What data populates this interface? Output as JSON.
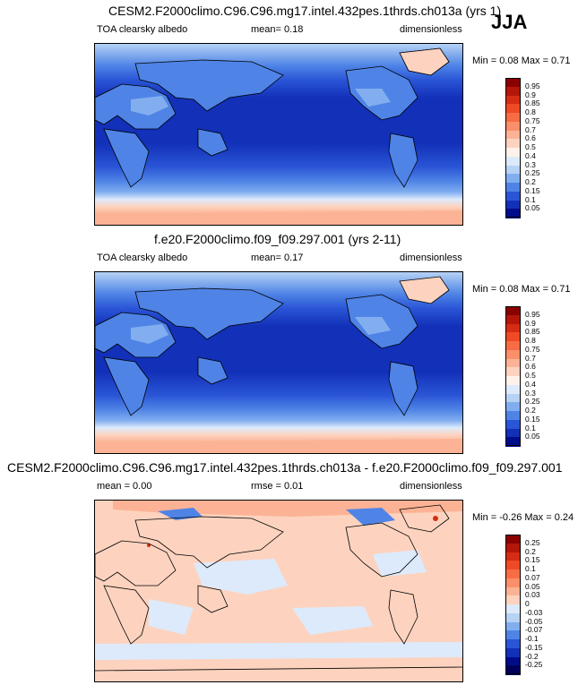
{
  "season": "JJA",
  "panels": [
    {
      "id": "top",
      "title": "CESM2.F2000climo.C96.C96.mg17.intel.432pes.1thrds.ch013a (yrs 1)",
      "left_label": "TOA clearsky albedo",
      "center_label": "mean=  0.18",
      "right_label": "dimensionless",
      "minmax": "Min =  0.08 Max =  0.71"
    },
    {
      "id": "middle",
      "title": "f.e20.F2000climo.f09_f09.297.001 (yrs 2-11)",
      "left_label": "TOA clearsky albedo",
      "center_label": "mean=  0.17",
      "right_label": "dimensionless",
      "minmax": "Min =  0.08 Max =  0.71"
    },
    {
      "id": "bottom",
      "title": "CESM2.F2000climo.C96.C96.mg17.intel.432pes.1thrds.ch013a - f.e20.F2000climo.f09_f09.297.001",
      "left_label": "mean =  0.00",
      "center_label": "rmse =  0.01",
      "right_label": "dimensionless",
      "minmax": "Min =  -0.26 Max =  0.24"
    }
  ],
  "colorbars": {
    "albedo": {
      "labels": [
        "0.95",
        "0.9",
        "0.85",
        "0.8",
        "0.75",
        "0.7",
        "0.6",
        "0.5",
        "0.4",
        "0.3",
        "0.25",
        "0.2",
        "0.15",
        "0.1",
        "0.05"
      ],
      "colors": [
        "#8b0000",
        "#b4160a",
        "#d42d14",
        "#ee4a26",
        "#f76c45",
        "#fb8f6a",
        "#fcb395",
        "#fdd3bf",
        "#fff2ea",
        "#ddeafb",
        "#b6d2f5",
        "#82aef0",
        "#4f84e6",
        "#2a55d6",
        "#1230b8",
        "#000c8a"
      ]
    },
    "difference": {
      "labels": [
        "0.25",
        "0.2",
        "0.15",
        "0.1",
        "0.07",
        "0.05",
        "0.03",
        "0",
        "-0.03",
        "-0.05",
        "-0.07",
        "-0.1",
        "-0.15",
        "-0.2",
        "-0.25"
      ],
      "colors": [
        "#8b0000",
        "#b4160a",
        "#d42d14",
        "#ee4a26",
        "#f76c45",
        "#fb8f6a",
        "#fcb395",
        "#fdd3bf",
        "#ddeafb",
        "#b6d2f5",
        "#82aef0",
        "#4f84e6",
        "#2a55d6",
        "#1230b8",
        "#000c8a",
        "#00005a"
      ]
    }
  },
  "chart_data": [
    {
      "type": "heatmap",
      "title": "CESM2.F2000climo.C96.C96.mg17.intel.432pes.1thrds.ch013a (yrs 1)",
      "variable": "TOA clearsky albedo",
      "units": "dimensionless",
      "mean": 0.18,
      "min": 0.08,
      "max": 0.71,
      "levels": [
        0.05,
        0.1,
        0.15,
        0.2,
        0.25,
        0.3,
        0.4,
        0.5,
        0.6,
        0.7,
        0.75,
        0.8,
        0.85,
        0.9,
        0.95
      ]
    },
    {
      "type": "heatmap",
      "title": "f.e20.F2000climo.f09_f09.297.001 (yrs 2-11)",
      "variable": "TOA clearsky albedo",
      "units": "dimensionless",
      "mean": 0.17,
      "min": 0.08,
      "max": 0.71,
      "levels": [
        0.05,
        0.1,
        0.15,
        0.2,
        0.25,
        0.3,
        0.4,
        0.5,
        0.6,
        0.7,
        0.75,
        0.8,
        0.85,
        0.9,
        0.95
      ]
    },
    {
      "type": "heatmap",
      "title": "CESM2.F2000climo.C96.C96.mg17.intel.432pes.1thrds.ch013a - f.e20.F2000climo.f09_f09.297.001",
      "units": "dimensionless",
      "mean": 0.0,
      "rmse": 0.01,
      "min": -0.26,
      "max": 0.24,
      "levels": [
        -0.25,
        -0.2,
        -0.15,
        -0.1,
        -0.07,
        -0.05,
        -0.03,
        0,
        0.03,
        0.05,
        0.07,
        0.1,
        0.15,
        0.2,
        0.25
      ]
    }
  ]
}
